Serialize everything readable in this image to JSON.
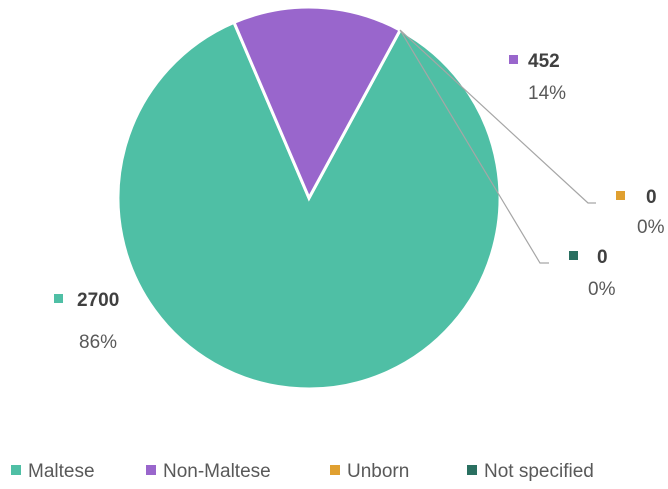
{
  "chart_data": {
    "type": "pie",
    "title": "",
    "categories": [
      "Maltese",
      "Non-Maltese",
      "Unborn",
      "Not specified"
    ],
    "values": [
      2700,
      452,
      0,
      0
    ],
    "percent_labels": [
      "86%",
      "14%",
      "0%",
      "0%"
    ],
    "value_labels": [
      "2700",
      "452",
      "0",
      "0"
    ],
    "colors": [
      "#4fbfa5",
      "#9966cc",
      "#e0a030",
      "#2a7061"
    ],
    "legend_position": "bottom"
  }
}
